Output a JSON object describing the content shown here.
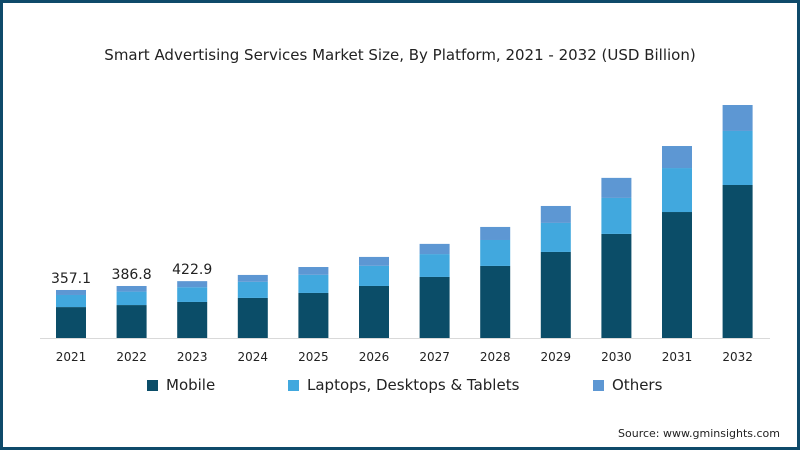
{
  "chart_data": {
    "type": "bar",
    "stacked": true,
    "title": "Smart Advertising Services Market Size, By Platform, 2021 - 2032 (USD Billion)",
    "xlabel": "",
    "ylabel": "",
    "categories": [
      "2021",
      "2022",
      "2023",
      "2024",
      "2025",
      "2026",
      "2027",
      "2028",
      "2029",
      "2030",
      "2031",
      "2032"
    ],
    "series": [
      {
        "name": "Mobile",
        "color": "#0b4d68",
        "values": [
          230,
          245,
          268,
          298,
          335,
          387,
          454,
          536,
          640,
          774,
          937,
          1138
        ]
      },
      {
        "name": "Laptops, Desktops & Tablets",
        "color": "#41a8de",
        "values": [
          90,
          100,
          110,
          120,
          135,
          150,
          170,
          193,
          216,
          268,
          327,
          402
        ]
      },
      {
        "name": "Others",
        "color": "#5d97d3",
        "values": [
          37.1,
          41.8,
          44.9,
          51,
          58,
          66,
          76,
          97,
          126,
          149,
          164,
          193
        ]
      }
    ],
    "data_labels": [
      "357.1",
      "386.8",
      "422.9"
    ],
    "ylim": [
      0,
      1800
    ],
    "grid": false,
    "legend_position": "bottom"
  },
  "source": "Source: www.gminsights.com"
}
